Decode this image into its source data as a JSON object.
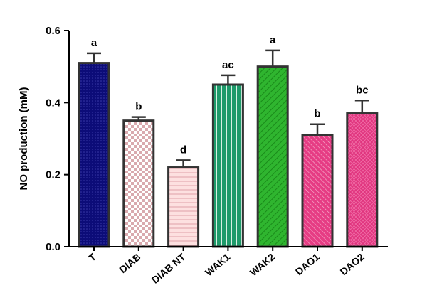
{
  "chart_data": {
    "type": "bar",
    "y_label": "NO production (mM)",
    "categories": [
      "T",
      "DIAB",
      "DIAB NT",
      "WAK1",
      "WAK2",
      "DAO1",
      "DAO2"
    ],
    "values": [
      0.51,
      0.35,
      0.22,
      0.45,
      0.5,
      0.31,
      0.37
    ],
    "errors": [
      0.027,
      0.01,
      0.02,
      0.026,
      0.045,
      0.03,
      0.036
    ],
    "annotations": [
      "a",
      "b",
      "d",
      "ac",
      "a",
      "b",
      "bc"
    ],
    "colors": [
      "#0c0c78",
      "#f2c8cc",
      "#fde0e0",
      "#1e9a6a",
      "#2fb52f",
      "#e63c84",
      "#e0347e"
    ],
    "ylim": [
      0,
      0.6
    ],
    "yticks": [
      {
        "value": 0,
        "label": "0.0"
      },
      {
        "value": 0.2,
        "label": "0.2"
      },
      {
        "value": 0.4,
        "label": "0.4"
      },
      {
        "value": 0.6,
        "label": "0.6"
      }
    ]
  }
}
